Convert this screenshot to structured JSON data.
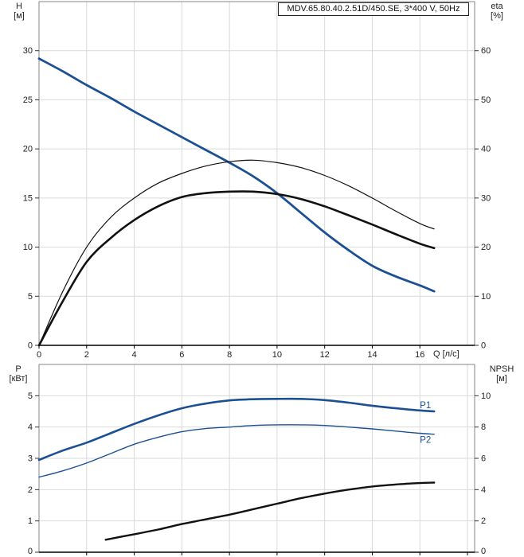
{
  "colors": {
    "curve_blue": "#1d5093",
    "curve_black": "#111111",
    "grid": "#d9d9d9",
    "frame": "#858585",
    "axis": "#000000",
    "text": "#222222"
  },
  "chart_data": [
    {
      "type": "line",
      "title": "MDV.65.80.40.2.51D/450.SE, 3*400 V, 50Hz",
      "xlabel": "Q [л/с]",
      "ylabel_left": "H [м]",
      "ylabel_left_lines": [
        "H",
        "[м]"
      ],
      "ylabel_right": "eta [%]",
      "ylabel_right_lines": [
        "eta",
        "[%]"
      ],
      "xlim": [
        0,
        18.3
      ],
      "ylim_left": [
        0,
        35
      ],
      "ylim_right": [
        0,
        70
      ],
      "x_ticks": [
        0,
        2,
        4,
        6,
        8,
        10,
        12,
        14,
        16
      ],
      "x_grid": [
        2,
        4,
        6,
        8,
        10,
        12,
        14,
        16,
        18
      ],
      "left_ticks": [
        0,
        5,
        10,
        15,
        20,
        25,
        30
      ],
      "right_ticks": [
        0,
        10,
        20,
        30,
        40,
        50,
        60
      ],
      "grid": true,
      "legend": "none",
      "series": [
        {
          "name": "head-curve",
          "axis": "left",
          "color": "#1d5093",
          "width": 2.8,
          "x": [
            0,
            1,
            2,
            3,
            4,
            5,
            6,
            7,
            8,
            9,
            10,
            11,
            12,
            13,
            14,
            15,
            16,
            16.6
          ],
          "values": [
            29.2,
            27.9,
            26.5,
            25.2,
            23.8,
            22.5,
            21.2,
            19.9,
            18.6,
            17.2,
            15.5,
            13.5,
            11.5,
            9.7,
            8.1,
            7.0,
            6.1,
            5.5
          ]
        },
        {
          "name": "eta-pump-curve",
          "axis": "right",
          "color": "#111111",
          "width": 1.2,
          "x": [
            0,
            1,
            2,
            3,
            4,
            5,
            6,
            7,
            8,
            9,
            10,
            11,
            12,
            13,
            14,
            15,
            16,
            16.6
          ],
          "values": [
            0,
            11,
            20,
            26,
            30,
            33,
            35,
            36.5,
            37.4,
            37.7,
            37.2,
            36.2,
            34.6,
            32.5,
            30.0,
            27.3,
            24.8,
            23.7
          ]
        },
        {
          "name": "eta-pump-motor-curve",
          "axis": "right",
          "color": "#111111",
          "width": 2.6,
          "x": [
            0,
            1,
            2,
            3,
            4,
            5,
            6,
            7,
            8,
            9,
            10,
            11,
            12,
            13,
            14,
            15,
            16,
            16.6
          ],
          "values": [
            0,
            9,
            17,
            21.8,
            25.5,
            28.3,
            30.2,
            31.0,
            31.3,
            31.3,
            30.8,
            29.8,
            28.3,
            26.5,
            24.6,
            22.6,
            20.7,
            19.8
          ]
        }
      ],
      "annotations": []
    },
    {
      "type": "line",
      "title": "",
      "xlabel": "",
      "ylabel_left": "P [кВт]",
      "ylabel_left_lines": [
        "P",
        "[кВт]"
      ],
      "ylabel_right": "NPSH [м]",
      "ylabel_right_lines": [
        "NPSH",
        "[м]"
      ],
      "xlim": [
        0,
        18.3
      ],
      "ylim_left": [
        0,
        6
      ],
      "ylim_right": [
        0,
        12
      ],
      "x_ticks": [],
      "x_grid": [
        2,
        4,
        6,
        8,
        10,
        12,
        14,
        16,
        18
      ],
      "left_ticks": [
        0,
        1,
        2,
        3,
        4,
        5
      ],
      "right_ticks": [
        0,
        2,
        4,
        6,
        8,
        10
      ],
      "grid": true,
      "legend": "none",
      "series": [
        {
          "name": "p1-curve",
          "axis": "left",
          "color": "#1d5093",
          "width": 2.6,
          "x": [
            0,
            1,
            2,
            3,
            4,
            5,
            6,
            7,
            8,
            9,
            10,
            11,
            12,
            13,
            14,
            15,
            16,
            16.6
          ],
          "values": [
            2.95,
            3.25,
            3.5,
            3.8,
            4.1,
            4.37,
            4.6,
            4.75,
            4.85,
            4.89,
            4.9,
            4.9,
            4.86,
            4.78,
            4.68,
            4.6,
            4.53,
            4.5
          ]
        },
        {
          "name": "p2-curve",
          "axis": "left",
          "color": "#1d5093",
          "width": 1.4,
          "x": [
            0,
            1,
            2,
            3,
            4,
            5,
            6,
            7,
            8,
            9,
            10,
            11,
            12,
            13,
            14,
            15,
            16,
            16.6
          ],
          "values": [
            2.4,
            2.6,
            2.85,
            3.15,
            3.45,
            3.67,
            3.85,
            3.95,
            4.0,
            4.05,
            4.07,
            4.07,
            4.05,
            4.0,
            3.94,
            3.87,
            3.8,
            3.77
          ]
        },
        {
          "name": "npsh-curve",
          "axis": "right",
          "color": "#111111",
          "width": 2.4,
          "x": [
            2.8,
            4,
            5,
            6,
            7,
            8,
            9,
            10,
            11,
            12,
            13,
            14,
            15,
            16,
            16.6
          ],
          "values": [
            0.8,
            1.15,
            1.45,
            1.8,
            2.1,
            2.4,
            2.75,
            3.1,
            3.45,
            3.75,
            4.0,
            4.2,
            4.33,
            4.42,
            4.45
          ]
        }
      ],
      "annotations": [
        {
          "text": "P1",
          "x": 16.0,
          "value": 4.6,
          "axis": "left"
        },
        {
          "text": "P2",
          "x": 16.0,
          "value": 3.5,
          "axis": "left"
        }
      ]
    }
  ]
}
